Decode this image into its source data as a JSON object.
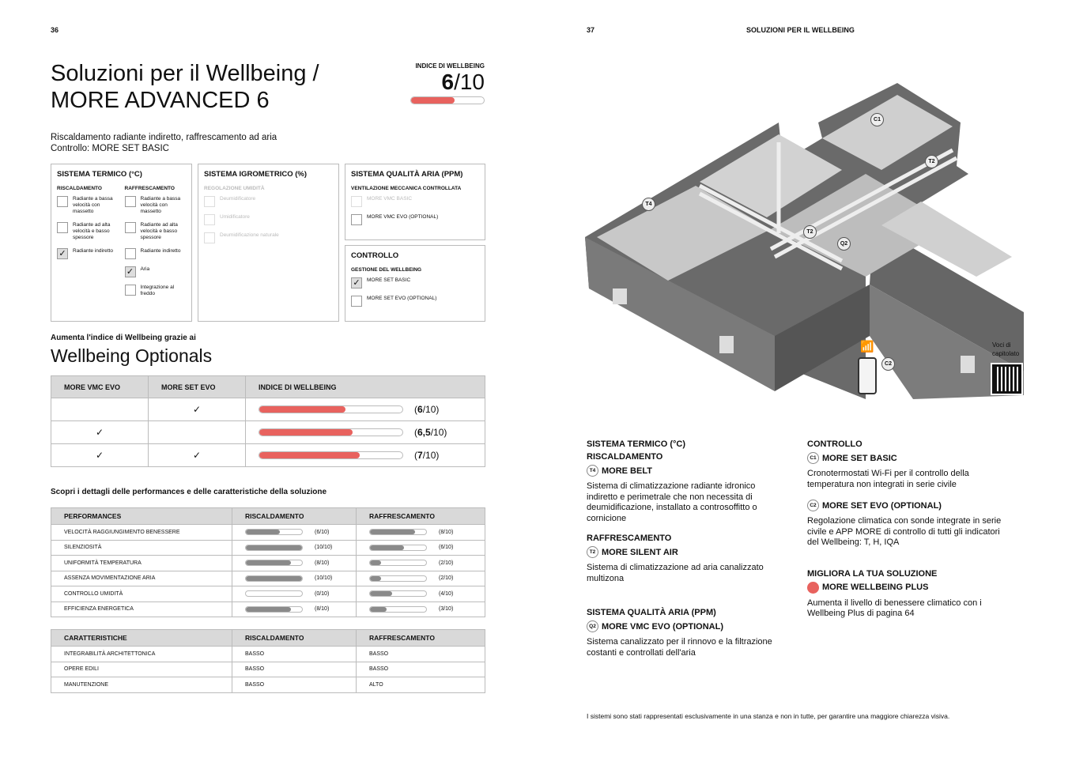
{
  "left": {
    "page_number": "36",
    "title_line1": "Soluzioni per il Wellbeing /",
    "title_line2": "MORE ADVANCED 6",
    "index": {
      "label": "INDICE DI WELLBEING",
      "value": "6",
      "suffix": "/10",
      "fraction": 0.6
    },
    "subtitle1": "Riscaldamento radiante indiretto, raffrescamento ad aria",
    "subtitle2": "Controllo: MORE SET BASIC",
    "termico": {
      "title": "SISTEMA TERMICO (°C)",
      "col1": {
        "title": "RISCALDAMENTO",
        "items": [
          {
            "label": "Radiante a bassa velocità con massetto",
            "checked": false
          },
          {
            "label": "Radiante ad alta velocità e basso spessore",
            "checked": false
          },
          {
            "label": "Radiante indiretto",
            "checked": true
          }
        ]
      },
      "col2": {
        "title": "RAFFRESCAMENTO",
        "items": [
          {
            "label": "Radiante a bassa velocità con massetto",
            "checked": false
          },
          {
            "label": "Radiante ad alta velocità e basso spessore",
            "checked": false
          },
          {
            "label": "Radiante indiretto",
            "checked": false
          },
          {
            "label": "Aria",
            "checked": true
          },
          {
            "label": "Integrazione al freddo",
            "checked": false
          }
        ]
      }
    },
    "igrometrico": {
      "title": "SISTEMA IGROMETRICO (%)",
      "subtitle": "REGOLAZIONE UMIDITÀ",
      "items": [
        "Deumidificatore",
        "Umidificatore",
        "Deumidificazione naturale"
      ]
    },
    "aria": {
      "title": "SISTEMA QUALITÀ ARIA (PPM)",
      "subtitle": "VENTILAZIONE MECCANICA CONTROLLATA",
      "items": [
        {
          "label": "MORE VMC BASIC",
          "disabled": true
        },
        {
          "label": "MORE VMC EVO (OPTIONAL)",
          "disabled": false
        }
      ]
    },
    "controllo": {
      "title": "CONTROLLO",
      "subtitle": "GESTIONE DEL WELLBEING",
      "items": [
        {
          "label": "MORE SET BASIC",
          "checked": true
        },
        {
          "label": "MORE SET EVO (OPTIONAL)",
          "checked": false
        }
      ]
    },
    "optionals_intro": "Aumenta l'indice di Wellbeing grazie ai",
    "optionals_title": "Wellbeing Optionals",
    "optionals_table": {
      "headers": [
        "MORE VMC EVO",
        "MORE SET EVO",
        "INDICE DI WELLBEING"
      ],
      "check": "✓",
      "rows": [
        {
          "vmc": false,
          "set": true,
          "value": "6",
          "fraction": 0.6
        },
        {
          "vmc": true,
          "set": false,
          "value": "6,5",
          "fraction": 0.65
        },
        {
          "vmc": true,
          "set": true,
          "value": "7",
          "fraction": 0.7
        }
      ],
      "suffix": "/10"
    },
    "details_intro": "Scopri i dettagli delle performances e delle caratteristiche della soluzione",
    "performances": {
      "headers": [
        "PERFORMANCES",
        "RISCALDAMENTO",
        "RAFFRESCAMENTO"
      ],
      "rows": [
        {
          "label": "VELOCITÀ RAGGIUNGIMENTO BENESSERE",
          "r": 6,
          "f": 8,
          "r_text": "(6/10)",
          "f_text": "(8/10)"
        },
        {
          "label": "SILENZIOSITÀ",
          "r": 10,
          "f": 6,
          "r_text": "(10/10)",
          "f_text": "(6/10)"
        },
        {
          "label": "UNIFORMITÀ TEMPERATURA",
          "r": 8,
          "f": 2,
          "r_text": "(8/10)",
          "f_text": "(2/10)"
        },
        {
          "label": "ASSENZA MOVIMENTAZIONE ARIA",
          "r": 10,
          "f": 2,
          "r_text": "(10/10)",
          "f_text": "(2/10)"
        },
        {
          "label": "CONTROLLO UMIDITÀ",
          "r": 0,
          "f": 4,
          "r_text": "(0/10)",
          "f_text": "(4/10)"
        },
        {
          "label": "EFFICIENZA ENERGETICA",
          "r": 8,
          "f": 3,
          "r_text": "(8/10)",
          "f_text": "(3/10)"
        }
      ]
    },
    "caratteristiche": {
      "headers": [
        "CARATTERISTICHE",
        "RISCALDAMENTO",
        "RAFFRESCAMENTO"
      ],
      "rows": [
        [
          "INTEGRABILITÀ ARCHITETTONICA",
          "BASSO",
          "BASSO"
        ],
        [
          "OPERE EDILI",
          "BASSO",
          "BASSO"
        ],
        [
          "MANUTENZIONE",
          "BASSO",
          "ALTO"
        ]
      ]
    }
  },
  "right": {
    "page_number": "37",
    "header": "SOLUZIONI PER IL WELLBEING",
    "hotspots": {
      "c1": "C1",
      "t2a": "T2",
      "t2b": "T2",
      "t4": "T4",
      "q2": "Q2",
      "c2": "C2"
    },
    "qr_label": "Voci di capitolato",
    "termico": {
      "title": "SISTEMA TERMICO (°C)",
      "sub": "RISCALDAMENTO",
      "badge": "T4",
      "product": "MORE BELT",
      "desc": "Sistema di climatizzazione radiante idronico indiretto e perimetrale che non necessita di deumidificazione, installato a controsoffitto o cornicione"
    },
    "raff": {
      "sub": "RAFFRESCAMENTO",
      "badge": "T2",
      "product": "MORE SILENT AIR",
      "desc": "Sistema di climatizzazione ad aria canalizzato multizona"
    },
    "aria": {
      "title": "SISTEMA QUALITÀ ARIA (PPM)",
      "badge": "Q2",
      "product": "MORE VMC EVO (OPTIONAL)",
      "desc": "Sistema canalizzato per il rinnovo e la filtrazione costanti e controllati dell'aria"
    },
    "controllo": {
      "title": "CONTROLLO",
      "c1_badge": "C1",
      "c1_product": "MORE SET BASIC",
      "c1_desc": "Cronotermostati Wi-Fi per il controllo della temperatura non integrati in serie civile",
      "c2_badge": "C2",
      "c2_product": "MORE SET EVO (OPTIONAL)",
      "c2_desc": "Regolazione climatica con sonde integrate in serie civile e APP MORE di controllo di tutti gli indicatori del Wellbeing: T, H, IQA"
    },
    "migliora": {
      "title": "MIGLIORA LA TUA SOLUZIONE",
      "product": "MORE WELLBEING PLUS",
      "desc": "Aumenta il livello di benessere climatico con i Wellbeing Plus di pagina 64"
    },
    "footnote": "I sistemi sono stati rappresentati esclusivamente in una stanza e non in tutte, per garantire una maggiore chiarezza visiva."
  },
  "colors": {
    "accent": "#e8625e",
    "bar_gray": "#8a8a8a",
    "header_gray": "#d9d9d9"
  }
}
